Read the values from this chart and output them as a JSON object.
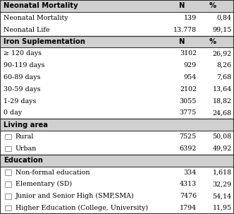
{
  "sections": [
    {
      "header": "Neonatal Mortality",
      "show_N_pct": true,
      "rows": [
        {
          "label": "Neonatal Mortality",
          "checkbox": false,
          "N": "139",
          "pct": "0,84"
        },
        {
          "label": "Neonatal Life",
          "checkbox": false,
          "N": "13.778",
          "pct": "99,15"
        }
      ]
    },
    {
      "header": "Iron Suplementation",
      "show_N_pct": true,
      "rows": [
        {
          "label": "≥ 120 days",
          "checkbox": false,
          "N": "3102",
          "pct": "26,92"
        },
        {
          "label": "90-119 days",
          "checkbox": false,
          "N": "929",
          "pct": "8,26"
        },
        {
          "label": "60-89 days",
          "checkbox": false,
          "N": "954",
          "pct": "7,68"
        },
        {
          "label": "30-59 days",
          "checkbox": false,
          "N": "2102",
          "pct": "13,64"
        },
        {
          "label": "1-29 days",
          "checkbox": false,
          "N": "3055",
          "pct": "18,82"
        },
        {
          "label": "0 day",
          "checkbox": false,
          "N": "3775",
          "pct": "24,68"
        }
      ]
    },
    {
      "header": "Living area",
      "show_N_pct": false,
      "rows": [
        {
          "label": "Rural",
          "checkbox": true,
          "N": "7525",
          "pct": "50,08"
        },
        {
          "label": "Urban",
          "checkbox": true,
          "N": "6392",
          "pct": "49,92"
        }
      ]
    },
    {
      "header": "Education",
      "show_N_pct": false,
      "rows": [
        {
          "label": "Non-formal education",
          "checkbox": true,
          "N": "334",
          "pct": "1,618"
        },
        {
          "label": "Elementary (SD)",
          "checkbox": true,
          "N": "4313",
          "pct": "32,29"
        },
        {
          "label": "Junior and Senior High (SMP,SMA)",
          "checkbox": true,
          "N": "7476",
          "pct": "54,14"
        },
        {
          "label": "Higher Education (College, University)",
          "checkbox": true,
          "N": "1794",
          "pct": "11,95"
        }
      ]
    }
  ],
  "bg_header": "#d0d0d0",
  "bg_white": "#ffffff",
  "border_color": "#333333",
  "font_size": 6.8,
  "header_font_size": 7.2,
  "fig_width": 3.32,
  "fig_height": 3.03,
  "dpi": 100
}
